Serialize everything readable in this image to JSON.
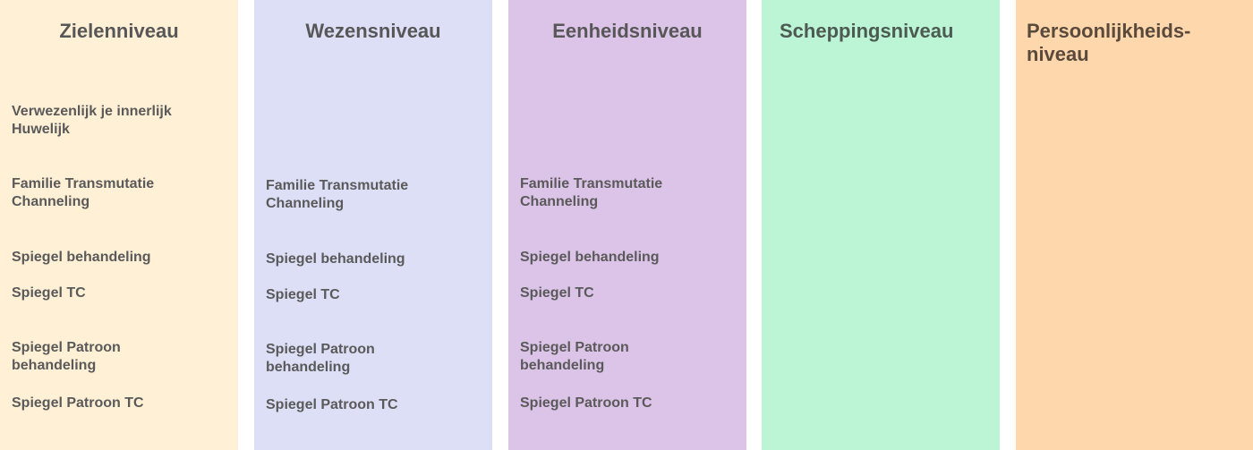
{
  "columns": [
    {
      "title": "Zielenniveau",
      "color": "#FFF0D6",
      "items": [
        "Verwezenlijk je innerlijk Huwelijk",
        "Familie Transmutatie Channeling",
        "Spiegel behandeling",
        "Spiegel TC",
        "Spiegel Patroon behandeling",
        "Spiegel Patroon TC"
      ]
    },
    {
      "title": "Wezensniveau",
      "color": "#DCDFF6",
      "items": [
        "Familie Transmutatie Channeling",
        "Spiegel behandeling",
        "Spiegel TC",
        "Spiegel Patroon behandeling",
        "Spiegel Patroon TC"
      ]
    },
    {
      "title": "Eenheidsniveau",
      "color": "#DCC3E8",
      "items": [
        "Familie Transmutatie Channeling",
        "Spiegel behandeling",
        "Spiegel TC",
        "Spiegel Patroon behandeling",
        "Spiegel Patroon TC"
      ]
    },
    {
      "title": "Scheppingsniveau",
      "color": "#BBF5D6",
      "items": []
    },
    {
      "title": "Persoonlijkheids-niveau",
      "color": "#FFD7AD",
      "items": []
    }
  ]
}
